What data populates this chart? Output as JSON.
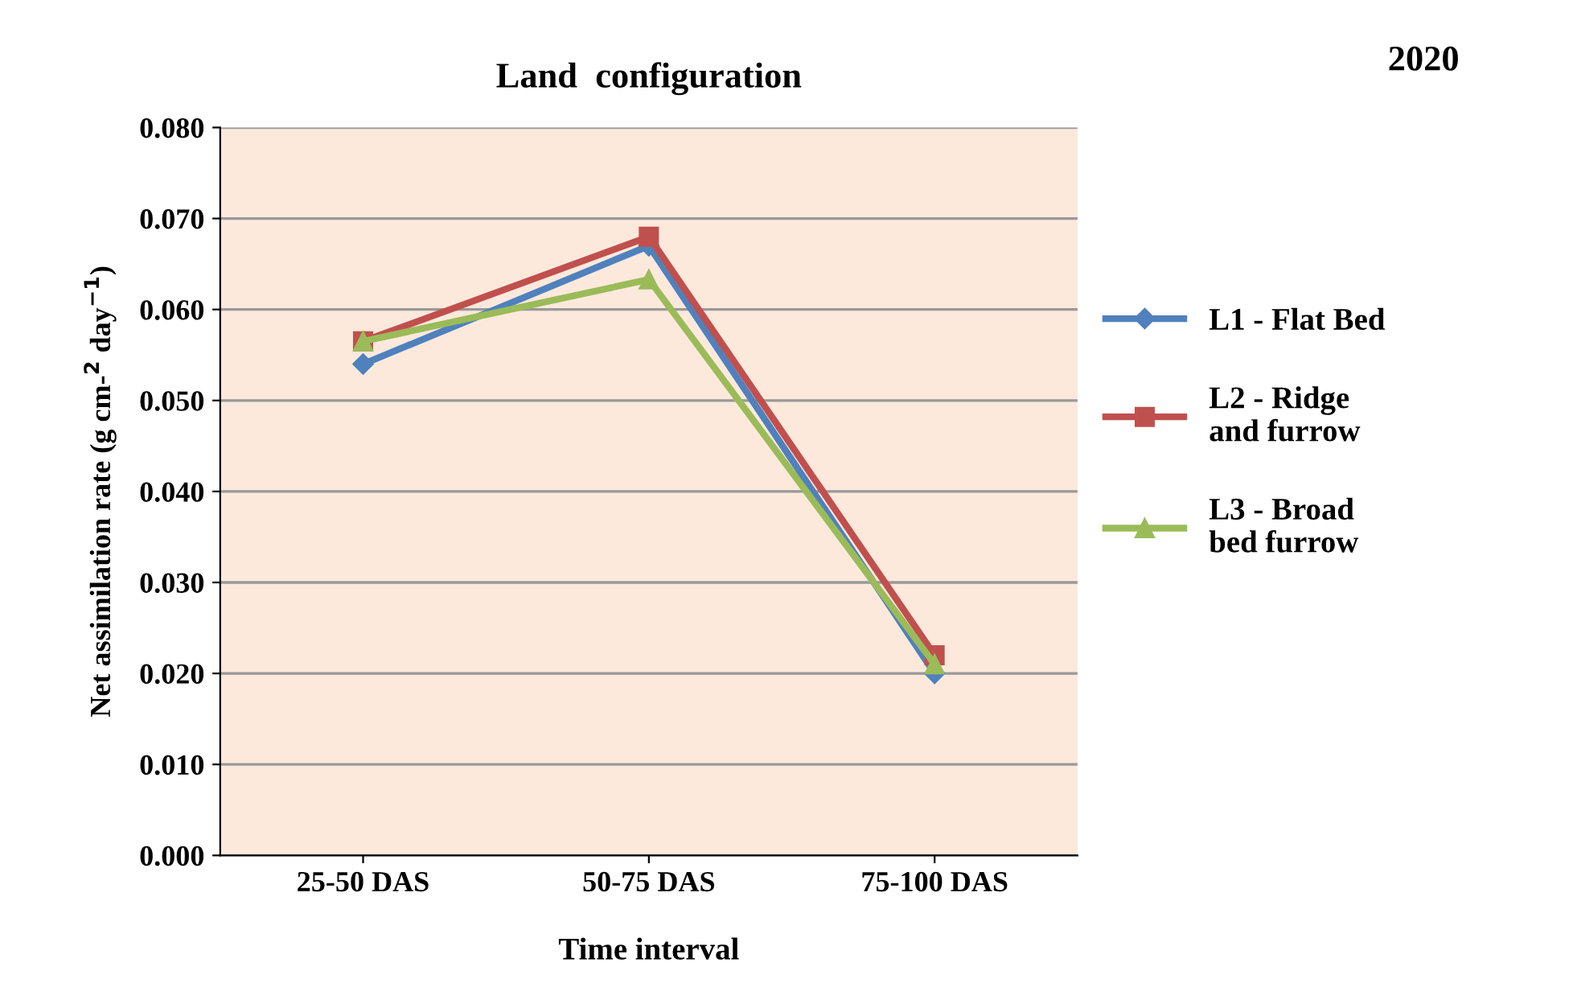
{
  "chart_data": {
    "type": "line",
    "title": "Land  configuration",
    "annotations": [
      "2020"
    ],
    "xlabel": "Time interval",
    "ylabel": "Net assimilation rate (g cm-$^{2}$ day$^{−1}$)",
    "categories": [
      "25-50 DAS",
      "50-75 DAS",
      "75-100 DAS"
    ],
    "series": [
      {
        "name": "L1 - Flat Bed",
        "color": "#4f81bd",
        "marker": "diamond",
        "values": [
          0.054,
          0.067,
          0.02
        ]
      },
      {
        "name": "L2 - Ridge\nand furrow",
        "color": "#c0504d",
        "marker": "square",
        "values": [
          0.0565,
          0.068,
          0.022
        ]
      },
      {
        "name": "L3 - Broad\nbed furrow",
        "color": "#9bbb59",
        "marker": "triangle",
        "values": [
          0.0565,
          0.0633,
          0.021
        ]
      }
    ],
    "ylim": [
      0,
      0.08
    ],
    "yticks": [
      {
        "value": 0,
        "label": "0.000"
      },
      {
        "value": 0.01,
        "label": "0.010"
      },
      {
        "value": 0.02,
        "label": "0.020"
      },
      {
        "value": 0.03,
        "label": "0.030"
      },
      {
        "value": 0.04,
        "label": "0.040"
      },
      {
        "value": 0.05,
        "label": "0.050"
      },
      {
        "value": 0.06,
        "label": "0.060"
      },
      {
        "value": 0.07,
        "label": "0.070"
      },
      {
        "value": 0.08,
        "label": "0.080"
      }
    ],
    "grid": "y",
    "legend": "right",
    "line_style": "solid"
  }
}
